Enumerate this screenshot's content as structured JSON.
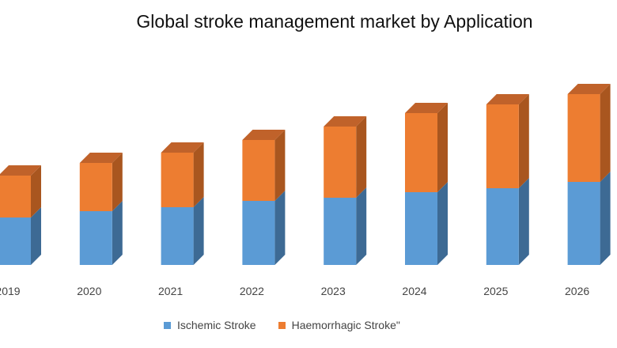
{
  "chart_data": {
    "type": "bar",
    "stacked": true,
    "style": "3d-column",
    "title": "Global stroke management market by Application",
    "categories": [
      "2019",
      "2020",
      "2021",
      "2022",
      "2023",
      "2024",
      "2025",
      "2026"
    ],
    "series": [
      {
        "name": "Ischemic Stroke",
        "color": "#5b9bd5",
        "values": [
          60,
          68,
          73,
          81,
          85,
          92,
          97,
          105
        ]
      },
      {
        "name": "Haemorrhagic Stroke\"",
        "color": "#ed7d31",
        "values": [
          53,
          61,
          69,
          77,
          90,
          100,
          106,
          111
        ]
      }
    ],
    "xlabel": "",
    "ylabel": "",
    "y_axis_visible": false,
    "grid": false,
    "legend": "bottom"
  }
}
